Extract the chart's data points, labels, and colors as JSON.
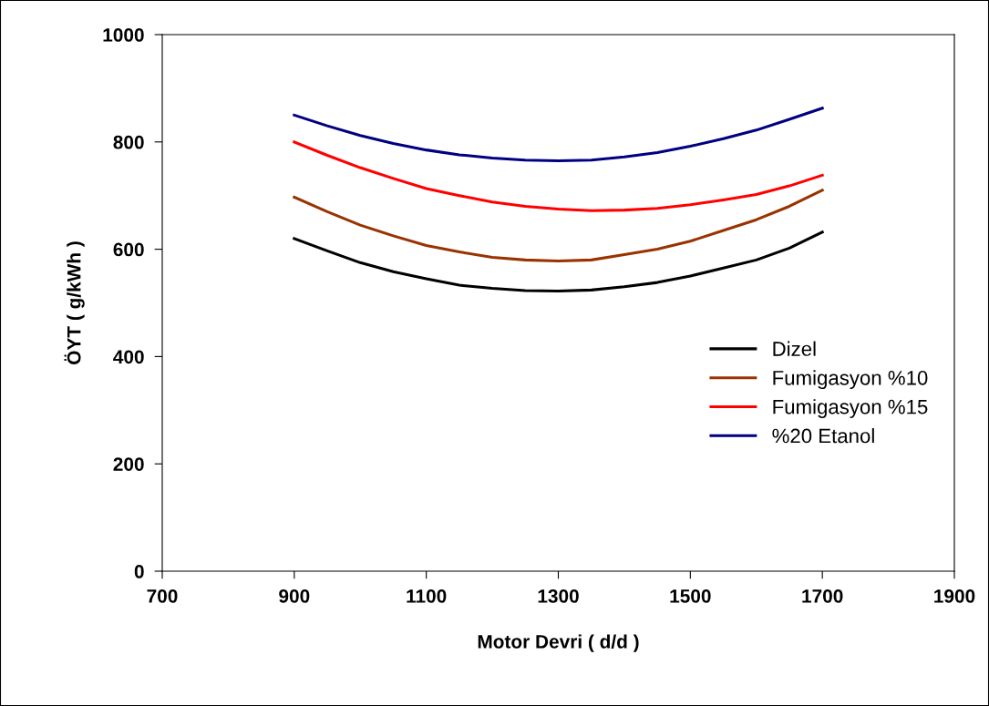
{
  "chart_data": {
    "type": "line",
    "xlabel": "Motor Devri ( d/d )",
    "ylabel": "ÖYT ( g/kWh )",
    "x": [
      900,
      950,
      1000,
      1050,
      1100,
      1150,
      1200,
      1250,
      1300,
      1350,
      1400,
      1450,
      1500,
      1550,
      1600,
      1650,
      1700
    ],
    "series": [
      {
        "name": "Dizel",
        "color": "#000000",
        "values": [
          620,
          597,
          575,
          558,
          545,
          533,
          527,
          523,
          522,
          524,
          530,
          538,
          550,
          565,
          580,
          602,
          632
        ]
      },
      {
        "name": "Fumigasyon %10",
        "color": "#993300",
        "values": [
          697,
          670,
          645,
          625,
          607,
          595,
          585,
          580,
          578,
          580,
          590,
          600,
          615,
          635,
          655,
          680,
          710
        ]
      },
      {
        "name": "Fumigasyon %15",
        "color": "#ff0000",
        "values": [
          800,
          775,
          752,
          732,
          713,
          700,
          688,
          680,
          675,
          672,
          673,
          676,
          683,
          692,
          702,
          718,
          738
        ]
      },
      {
        "name": "%20 Etanol",
        "color": "#000080",
        "values": [
          850,
          830,
          812,
          797,
          785,
          776,
          770,
          766,
          765,
          766,
          772,
          780,
          792,
          806,
          822,
          842,
          863
        ]
      }
    ],
    "xlim": [
      700,
      1900
    ],
    "xticks": [
      700,
      900,
      1100,
      1300,
      1500,
      1700,
      1900
    ],
    "ylim": [
      0,
      1000
    ],
    "yticks": [
      0,
      200,
      400,
      600,
      800,
      1000
    ],
    "grid": false,
    "legend": "right",
    "marker": "none",
    "line_style": "solid"
  }
}
